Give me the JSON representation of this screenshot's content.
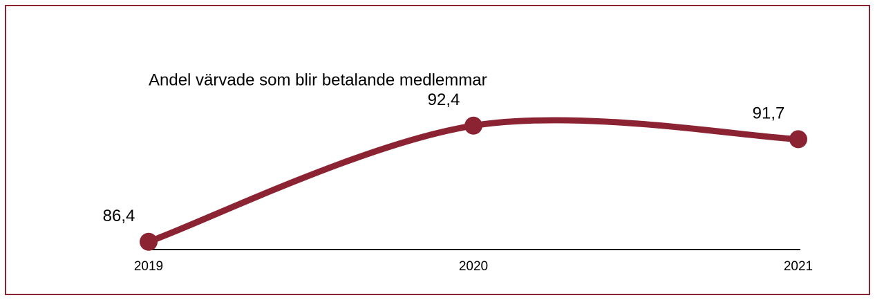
{
  "chart_data": {
    "type": "line",
    "title": "Andel värvade som blir betalande medlemmar",
    "categories": [
      "2019",
      "2020",
      "2021"
    ],
    "series": [
      {
        "name": null,
        "color": "#8b2332",
        "values": [
          86.4,
          92.4,
          91.7
        ],
        "value_labels": [
          "86,4",
          "92,4",
          "91,7"
        ]
      }
    ],
    "ylim": [
      86,
      93
    ],
    "smooth": true
  }
}
